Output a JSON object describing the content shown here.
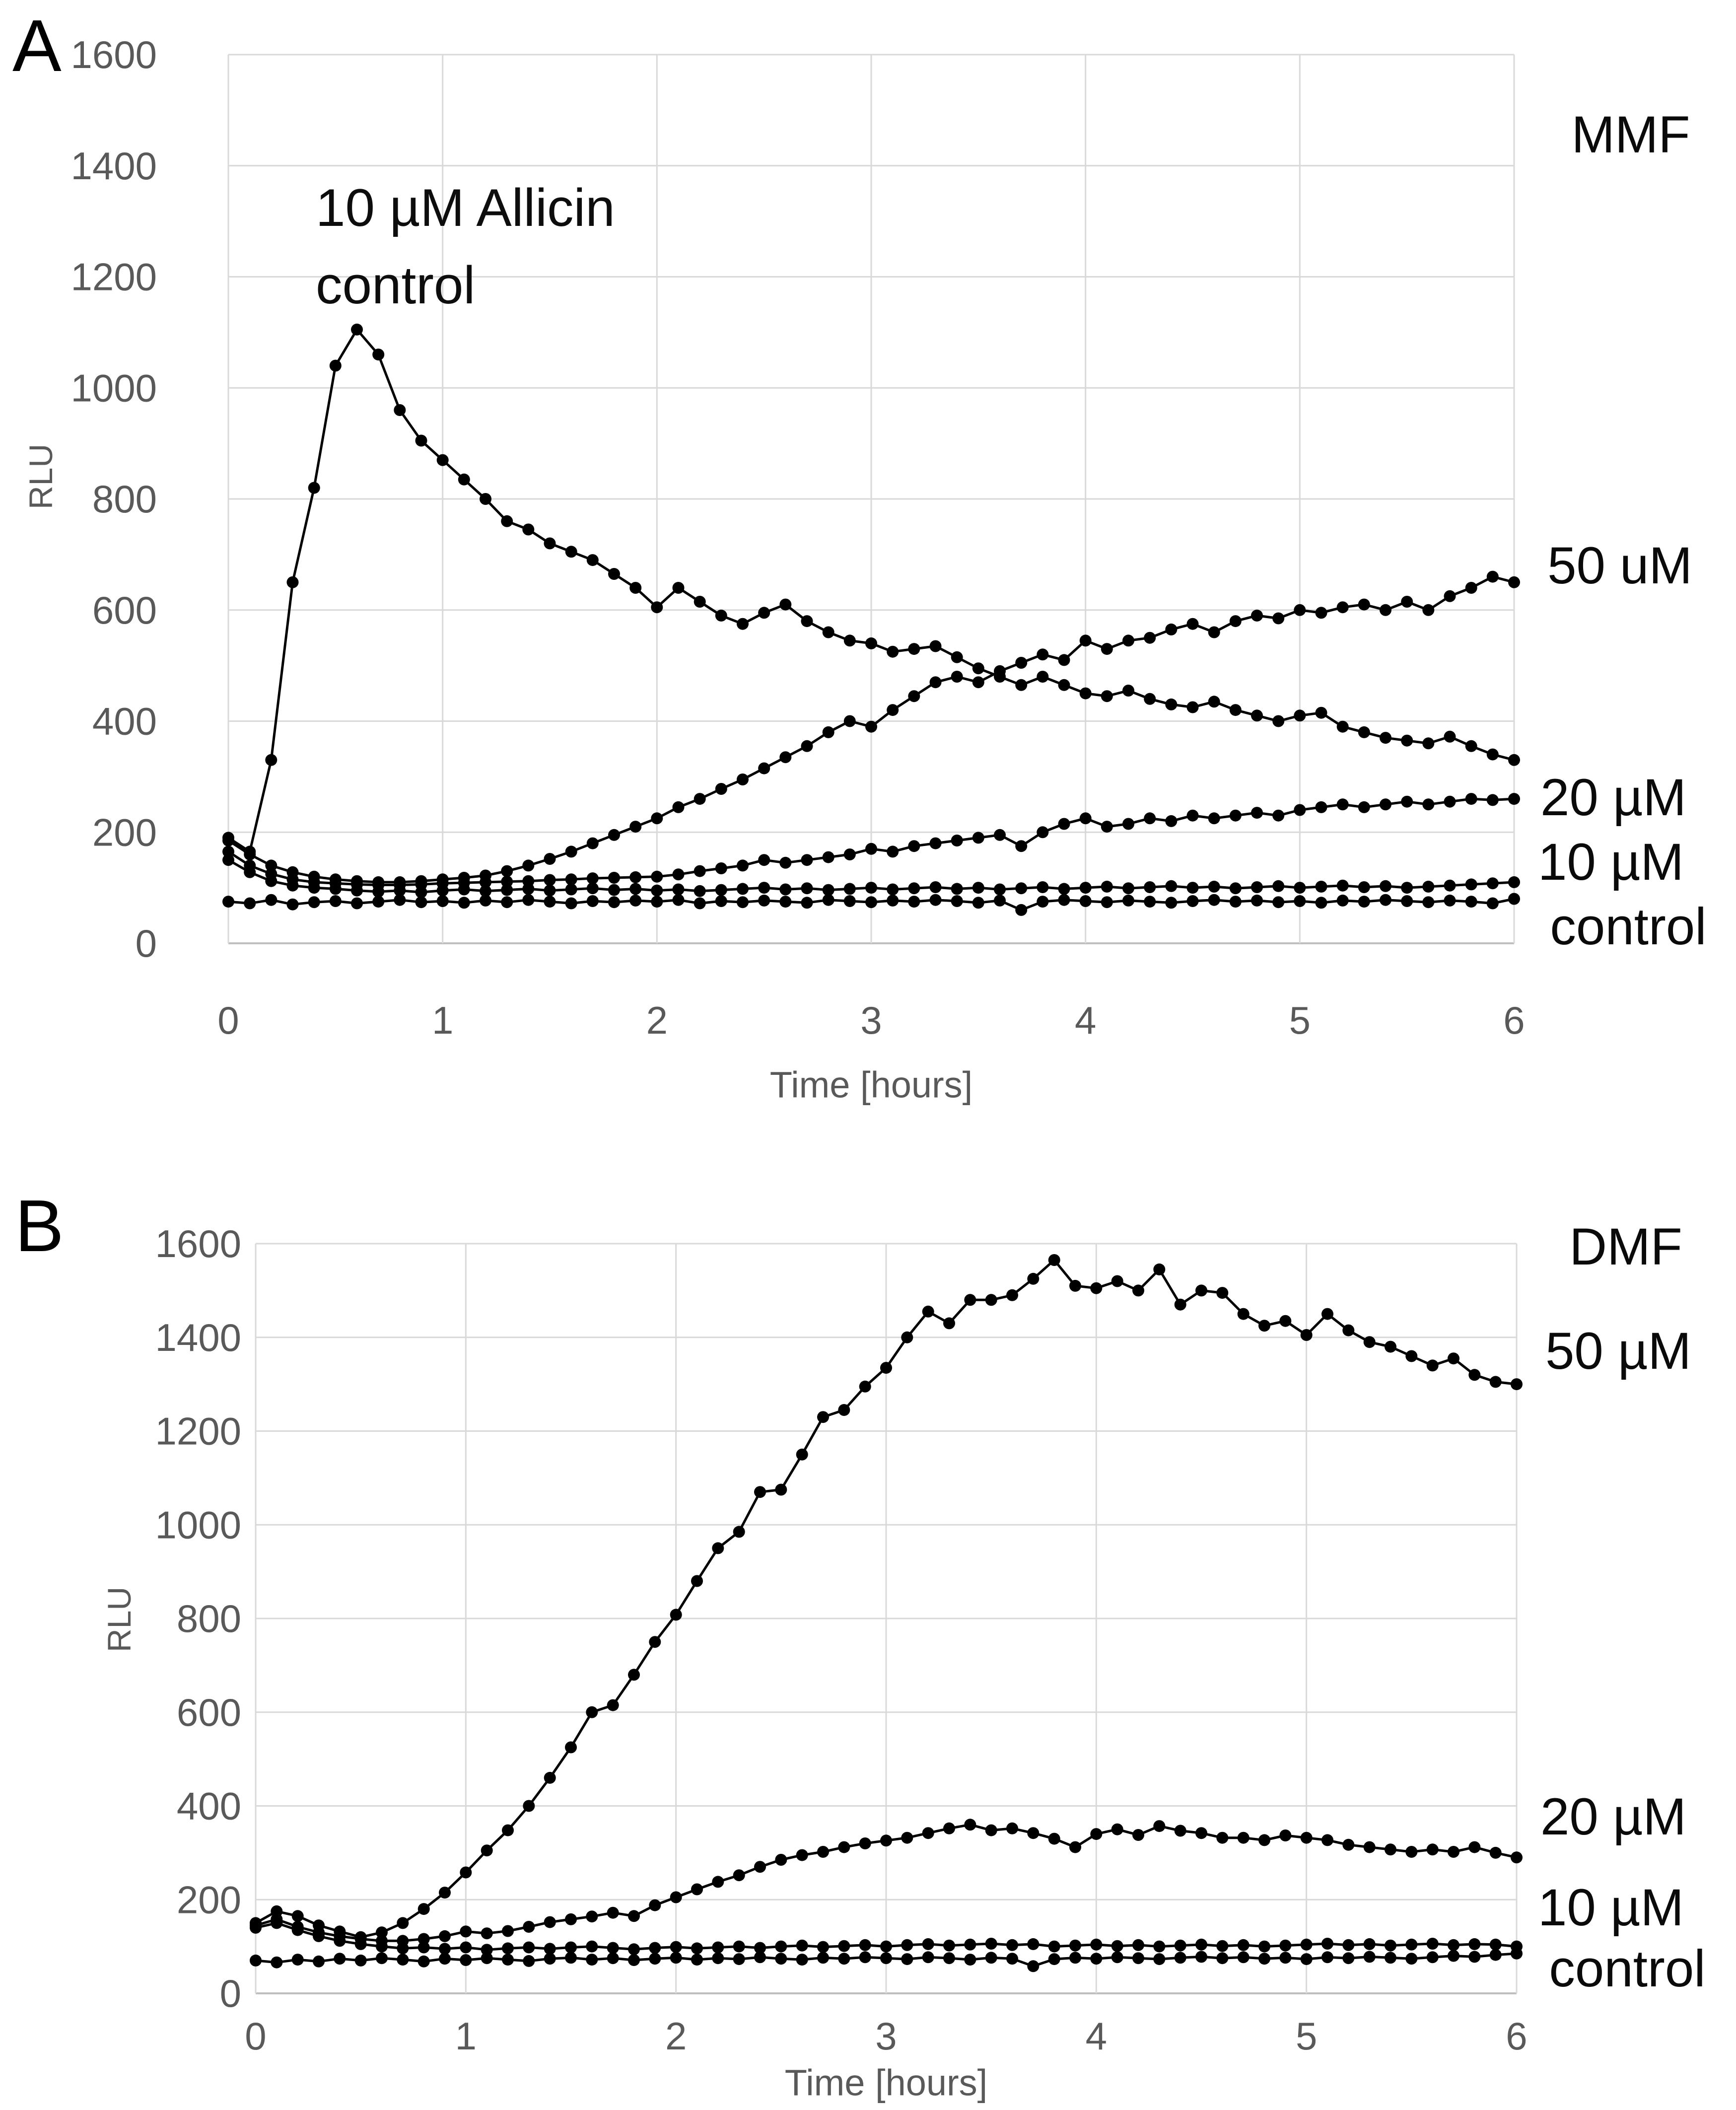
{
  "figure": {
    "panel_a": {
      "letter": "A",
      "treatment": "MMF",
      "annotation_line1": "10 µM Allicin",
      "annotation_line2": "control",
      "ylabel": "RLU",
      "xlabel": "Time [hours]",
      "label_50": "50 uM",
      "label_20": "20 µM",
      "label_10": "10 µM",
      "label_control": "control"
    },
    "panel_b": {
      "letter": "B",
      "treatment": "DMF",
      "ylabel": "RLU",
      "xlabel": "Time [hours]",
      "label_50": "50 µM",
      "label_20": "20 µM",
      "label_10": "10 µM",
      "label_control": "control"
    }
  },
  "chart_data": [
    {
      "type": "line",
      "panel": "A",
      "title": "MMF",
      "xlabel": "Time [hours]",
      "ylabel": "RLU",
      "xlim": [
        0,
        6
      ],
      "ylim": [
        0,
        1600
      ],
      "x_ticks": [
        0,
        1,
        2,
        3,
        4,
        5,
        6
      ],
      "y_ticks": [
        0,
        200,
        400,
        600,
        800,
        1000,
        1200,
        1400,
        1600
      ],
      "grid": true,
      "legend_position": "right-outside",
      "x_step": 0.1,
      "series": [
        {
          "name": "control",
          "values": [
            75,
            72,
            78,
            70,
            74,
            76,
            72,
            75,
            78,
            74,
            76,
            73,
            77,
            74,
            78,
            75,
            72,
            76,
            74,
            77,
            75,
            78,
            72,
            76,
            74,
            77,
            75,
            73,
            78,
            76,
            74,
            77,
            75,
            78,
            76,
            73,
            77,
            60,
            75,
            78,
            76,
            74,
            77,
            75,
            73,
            76,
            78,
            75,
            77,
            74,
            76,
            73,
            77,
            75,
            78,
            76,
            74,
            77,
            75,
            72,
            80
          ]
        },
        {
          "name": "10 µM",
          "values": [
            150,
            128,
            112,
            104,
            100,
            98,
            95,
            93,
            95,
            92,
            95,
            97,
            94,
            96,
            98,
            95,
            97,
            99,
            96,
            98,
            95,
            97,
            94,
            96,
            98,
            100,
            97,
            99,
            96,
            98,
            100,
            97,
            99,
            101,
            98,
            100,
            97,
            99,
            101,
            98,
            100,
            102,
            99,
            101,
            103,
            100,
            102,
            99,
            101,
            103,
            100,
            102,
            104,
            101,
            103,
            100,
            102,
            104,
            106,
            108,
            110
          ]
        },
        {
          "name": "20 µM",
          "values": [
            165,
            140,
            125,
            115,
            110,
            108,
            106,
            105,
            105,
            106,
            108,
            109,
            110,
            111,
            112,
            114,
            115,
            117,
            118,
            119,
            120,
            124,
            130,
            135,
            140,
            150,
            145,
            150,
            155,
            160,
            170,
            165,
            175,
            180,
            185,
            190,
            195,
            175,
            200,
            215,
            225,
            210,
            215,
            225,
            220,
            230,
            225,
            230,
            235,
            230,
            240,
            245,
            250,
            245,
            250,
            255,
            250,
            255,
            260,
            258,
            260
          ]
        },
        {
          "name": "50 uM",
          "values": [
            185,
            160,
            140,
            128,
            120,
            115,
            112,
            110,
            110,
            112,
            115,
            118,
            122,
            130,
            140,
            152,
            165,
            180,
            195,
            210,
            225,
            245,
            260,
            278,
            295,
            315,
            335,
            355,
            380,
            400,
            390,
            420,
            445,
            470,
            480,
            470,
            490,
            505,
            520,
            510,
            545,
            530,
            545,
            550,
            565,
            575,
            560,
            580,
            590,
            585,
            600,
            595,
            605,
            610,
            600,
            615,
            600,
            625,
            640,
            660,
            650
          ]
        },
        {
          "name": "10 µM Allicin control",
          "values": [
            190,
            165,
            330,
            650,
            820,
            1040,
            1105,
            1060,
            960,
            905,
            870,
            835,
            800,
            760,
            745,
            720,
            705,
            690,
            665,
            640,
            605,
            640,
            615,
            590,
            575,
            595,
            610,
            580,
            560,
            545,
            540,
            525,
            530,
            535,
            515,
            495,
            480,
            465,
            480,
            465,
            450,
            445,
            455,
            440,
            430,
            425,
            435,
            420,
            410,
            400,
            410,
            415,
            390,
            380,
            370,
            365,
            360,
            372,
            355,
            340,
            330
          ]
        }
      ]
    },
    {
      "type": "line",
      "panel": "B",
      "title": "DMF",
      "xlabel": "Time [hours]",
      "ylabel": "RLU",
      "xlim": [
        0,
        6
      ],
      "ylim": [
        0,
        1600
      ],
      "x_ticks": [
        0,
        1,
        2,
        3,
        4,
        5,
        6
      ],
      "y_ticks": [
        0,
        200,
        400,
        600,
        800,
        1000,
        1200,
        1400,
        1600
      ],
      "grid": true,
      "legend_position": "right-outside",
      "x_step": 0.1,
      "series": [
        {
          "name": "control",
          "values": [
            70,
            66,
            72,
            68,
            74,
            70,
            75,
            72,
            68,
            74,
            71,
            75,
            72,
            69,
            74,
            76,
            72,
            75,
            71,
            74,
            76,
            72,
            75,
            73,
            77,
            74,
            72,
            76,
            74,
            77,
            75,
            73,
            77,
            75,
            72,
            76,
            74,
            58,
            73,
            76,
            74,
            77,
            75,
            73,
            76,
            78,
            75,
            77,
            74,
            76,
            73,
            77,
            75,
            78,
            76,
            74,
            77,
            80,
            78,
            82,
            85
          ]
        },
        {
          "name": "10 µM",
          "values": [
            140,
            150,
            135,
            122,
            112,
            105,
            100,
            96,
            98,
            95,
            98,
            93,
            96,
            98,
            95,
            98,
            100,
            97,
            94,
            97,
            99,
            96,
            98,
            100,
            97,
            100,
            102,
            99,
            101,
            103,
            100,
            103,
            105,
            102,
            104,
            106,
            103,
            105,
            100,
            102,
            104,
            101,
            103,
            100,
            102,
            104,
            101,
            103,
            100,
            102,
            104,
            106,
            103,
            105,
            102,
            104,
            106,
            103,
            105,
            104,
            100
          ]
        },
        {
          "name": "20 µM",
          "values": [
            145,
            158,
            142,
            130,
            122,
            116,
            112,
            112,
            116,
            122,
            132,
            128,
            133,
            142,
            152,
            158,
            164,
            172,
            165,
            188,
            205,
            222,
            238,
            252,
            270,
            285,
            295,
            302,
            312,
            320,
            326,
            332,
            342,
            352,
            360,
            348,
            352,
            342,
            330,
            312,
            340,
            350,
            338,
            357,
            347,
            342,
            332,
            332,
            327,
            337,
            332,
            327,
            317,
            312,
            307,
            302,
            307,
            302,
            312,
            300,
            290
          ]
        },
        {
          "name": "50 µM",
          "values": [
            150,
            175,
            165,
            145,
            132,
            120,
            130,
            150,
            180,
            215,
            258,
            305,
            348,
            400,
            460,
            525,
            600,
            615,
            680,
            750,
            808,
            880,
            950,
            985,
            1070,
            1075,
            1150,
            1230,
            1245,
            1295,
            1335,
            1400,
            1455,
            1430,
            1480,
            1480,
            1490,
            1525,
            1565,
            1510,
            1505,
            1520,
            1500,
            1545,
            1470,
            1500,
            1495,
            1450,
            1425,
            1435,
            1405,
            1450,
            1415,
            1390,
            1380,
            1360,
            1340,
            1355,
            1320,
            1305,
            1300
          ]
        }
      ]
    }
  ],
  "style": {
    "series_color": "#000000",
    "grid_color": "#d9d9d9",
    "axis_line_color": "#bfbfbf",
    "tick_text_color": "#595959",
    "background": "#ffffff"
  }
}
